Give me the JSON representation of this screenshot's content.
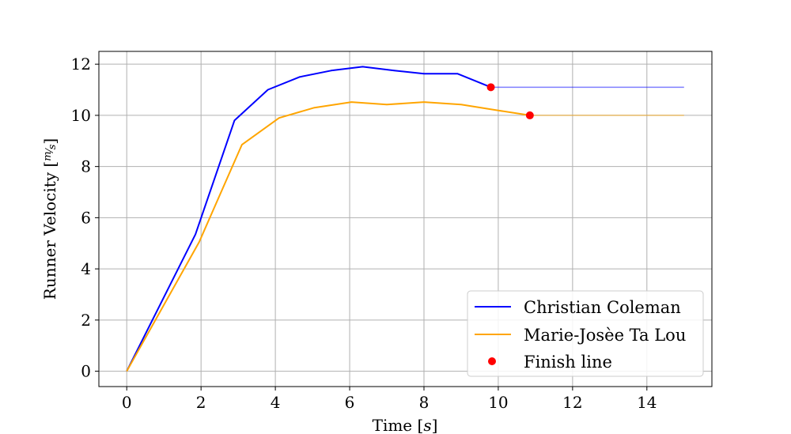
{
  "chart_data": {
    "type": "line",
    "title": "",
    "xlabel": "Time [s]",
    "ylabel": "Runner Velocity [m/s]",
    "xlim": [
      -0.75,
      15.75
    ],
    "ylim": [
      -0.6,
      12.5
    ],
    "xticks": [
      0,
      2,
      4,
      6,
      8,
      10,
      12,
      14
    ],
    "yticks": [
      0,
      2,
      4,
      6,
      8,
      10,
      12
    ],
    "grid": true,
    "legend_position": "lower-right",
    "series": [
      {
        "name": "Christian Coleman",
        "color": "#0000ff",
        "x": [
          0,
          1.85,
          2.9,
          3.8,
          4.65,
          5.5,
          6.35,
          7.2,
          8.0,
          8.9,
          9.8
        ],
        "y": [
          0,
          5.35,
          9.8,
          11.0,
          11.5,
          11.75,
          11.9,
          11.75,
          11.63,
          11.63,
          11.1
        ]
      },
      {
        "name": "Marie-Josèe Ta Lou",
        "color": "#ffa500",
        "x": [
          0,
          1.95,
          3.1,
          4.1,
          5.05,
          6.05,
          7.0,
          8.0,
          9.0,
          9.95,
          10.85
        ],
        "y": [
          0,
          5.05,
          8.85,
          9.9,
          10.3,
          10.52,
          10.42,
          10.52,
          10.42,
          10.2,
          10.0
        ]
      }
    ],
    "extensions": [
      {
        "series": "Christian Coleman",
        "color": "#0000ff",
        "x": [
          9.8,
          15
        ],
        "y": [
          11.1,
          11.1
        ]
      },
      {
        "series": "Marie-Josèe Ta Lou",
        "color": "#ffa500",
        "x": [
          10.85,
          15
        ],
        "y": [
          10.0,
          10.0
        ]
      }
    ],
    "finish_points": {
      "name": "Finish line",
      "color": "#ff0000",
      "points": [
        {
          "x": 9.8,
          "y": 11.1
        },
        {
          "x": 10.85,
          "y": 10.0
        }
      ]
    }
  }
}
